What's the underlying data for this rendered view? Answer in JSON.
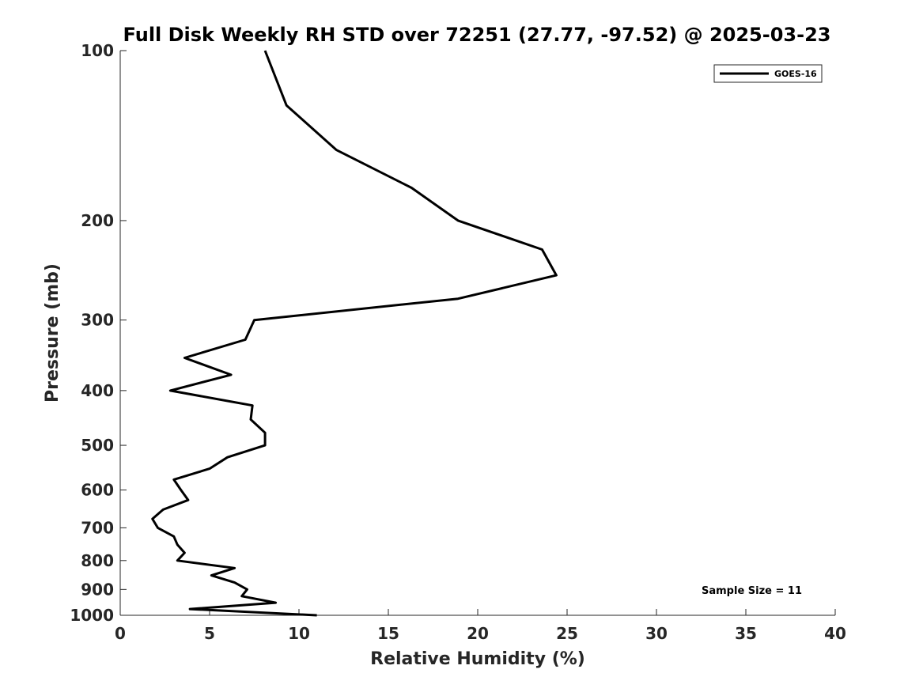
{
  "chart_data": {
    "type": "line",
    "title": "Full Disk Weekly RH STD over 72251 (27.77, -97.52) @ 2025-03-23",
    "xlabel": "Relative Humidity (%)",
    "ylabel": "Pressure (mb)",
    "xlim": [
      0,
      40
    ],
    "ylim": [
      100,
      1000
    ],
    "y_scale": "log",
    "y_inverted": true,
    "x_ticks": [
      0,
      5,
      10,
      15,
      20,
      25,
      30,
      35,
      40
    ],
    "y_ticks": [
      100,
      200,
      300,
      400,
      500,
      600,
      700,
      800,
      900,
      1000
    ],
    "grid": false,
    "legend_position": "top-right",
    "annotation": "Sample Size = 11",
    "series": [
      {
        "name": "GOES-16",
        "color": "#000000",
        "points": [
          [
            8.1,
            100
          ],
          [
            9.3,
            125
          ],
          [
            12.1,
            150
          ],
          [
            16.3,
            175
          ],
          [
            18.9,
            200
          ],
          [
            23.6,
            225
          ],
          [
            24.4,
            250
          ],
          [
            18.9,
            275
          ],
          [
            7.5,
            300
          ],
          [
            7.0,
            325
          ],
          [
            3.6,
            350
          ],
          [
            6.2,
            375
          ],
          [
            2.8,
            400
          ],
          [
            7.4,
            425
          ],
          [
            7.3,
            450
          ],
          [
            8.1,
            475
          ],
          [
            8.1,
            500
          ],
          [
            6.0,
            525
          ],
          [
            5.0,
            550
          ],
          [
            3.0,
            575
          ],
          [
            3.4,
            600
          ],
          [
            3.8,
            625
          ],
          [
            2.4,
            650
          ],
          [
            1.8,
            675
          ],
          [
            2.1,
            700
          ],
          [
            3.0,
            725
          ],
          [
            3.2,
            750
          ],
          [
            3.6,
            775
          ],
          [
            3.2,
            800
          ],
          [
            6.4,
            825
          ],
          [
            5.1,
            850
          ],
          [
            6.4,
            875
          ],
          [
            7.1,
            900
          ],
          [
            6.8,
            925
          ],
          [
            8.7,
            950
          ],
          [
            3.9,
            975
          ],
          [
            11.0,
            1000
          ]
        ]
      }
    ]
  }
}
